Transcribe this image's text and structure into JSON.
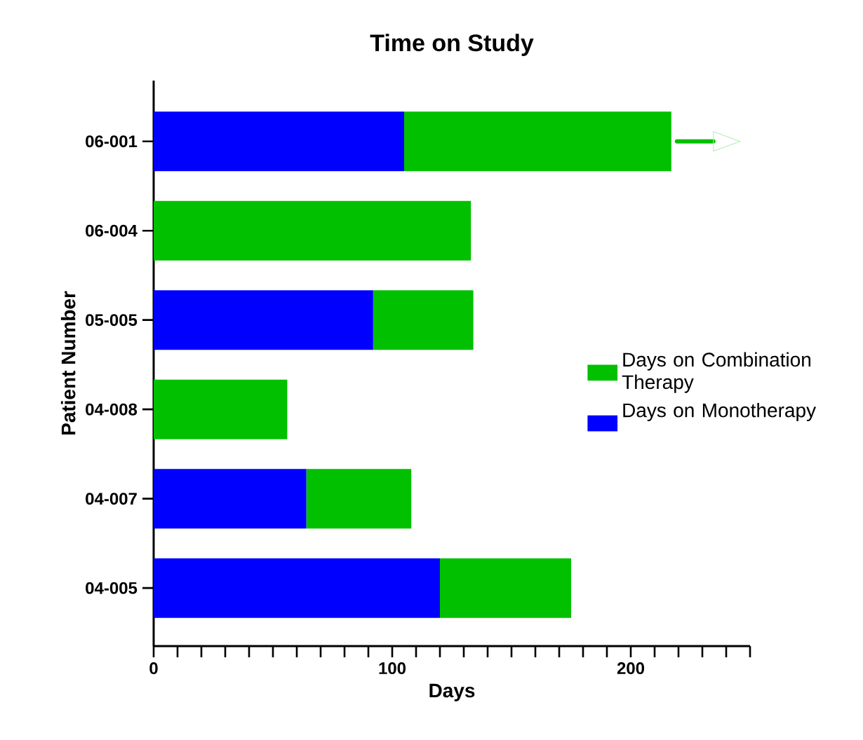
{
  "chart_data": {
    "type": "bar",
    "orientation": "horizontal",
    "stacked": true,
    "title": "Time on Study",
    "xlabel": "Days",
    "ylabel": "Patient Number",
    "categories": [
      "06-001",
      "06-004",
      "05-005",
      "04-008",
      "04-007",
      "04-005"
    ],
    "series": [
      {
        "name": "Days on Monotherapy",
        "color": "#0000ff",
        "values": [
          105,
          0,
          92,
          0,
          64,
          120
        ]
      },
      {
        "name": "Days on Combination Therapy",
        "color": "#00c000",
        "values": [
          112,
          133,
          42,
          56,
          44,
          55
        ]
      }
    ],
    "xlim": [
      0,
      250
    ],
    "xticks": [
      0,
      {
        "value": 10,
        "label": null
      },
      {
        "value": 20,
        "label": null
      },
      {
        "value": 30,
        "label": null
      },
      {
        "value": 40,
        "label": null
      },
      {
        "value": 50,
        "label": null
      },
      {
        "value": 60,
        "label": null
      },
      {
        "value": 70,
        "label": null
      },
      {
        "value": 80,
        "label": null
      },
      {
        "value": 90,
        "label": null
      },
      100,
      {
        "value": 110,
        "label": null
      },
      {
        "value": 120,
        "label": null
      },
      {
        "value": 130,
        "label": null
      },
      {
        "value": 140,
        "label": null
      },
      {
        "value": 150,
        "label": null
      },
      {
        "value": 160,
        "label": null
      },
      {
        "value": 170,
        "label": null
      },
      {
        "value": 180,
        "label": null
      },
      {
        "value": 190,
        "label": null
      },
      200,
      {
        "value": 210,
        "label": null
      },
      {
        "value": 220,
        "label": null
      },
      {
        "value": 230,
        "label": null
      },
      {
        "value": 240,
        "label": null
      },
      {
        "value": 250,
        "label": null
      }
    ],
    "legend": "right",
    "grid": false
  }
}
